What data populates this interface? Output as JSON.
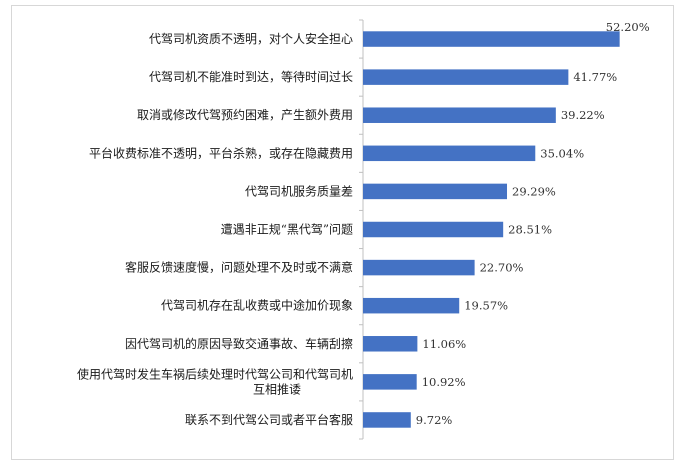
{
  "chart_data": {
    "type": "bar",
    "orientation": "horizontal",
    "categories": [
      "代驾司机资质不透明，对个人安全担心",
      "代驾司机不能准时到达，等待时间过长",
      "取消或修改代驾预约困难，产生额外费用",
      "平台收费标准不透明，平台杀熟，或存在隐藏费用",
      "代驾司机服务质量差",
      "遭遇非正规“黑代驾”问题",
      "客服反馈速度慢，问题处理不及时或不满意",
      "代驾司机存在乱收费或中途加价现象",
      "因代驾司机的原因导致交通事故、车辆刮擦",
      "使用代驾时发生车祸后续处理时代驾公司和代驾司机互相推诿",
      "联系不到代驾公司或者平台客服"
    ],
    "category_lines": [
      [
        "代驾司机资质不透明，对个人安全担心"
      ],
      [
        "代驾司机不能准时到达，等待时间过长"
      ],
      [
        "取消或修改代驾预约困难，产生额外费用"
      ],
      [
        "平台收费标准不透明，平台杀熟，或存在隐藏费用"
      ],
      [
        "代驾司机服务质量差"
      ],
      [
        "遭遇非正规“黑代驾”问题"
      ],
      [
        "客服反馈速度慢，问题处理不及时或不满意"
      ],
      [
        "代驾司机存在乱收费或中途加价现象"
      ],
      [
        "因代驾司机的原因导致交通事故、车辆刮擦"
      ],
      [
        "使用代驾时发生车祸后续处理时代驾公司和代驾司机",
        "互相推诿"
      ],
      [
        "联系不到代驾公司或者平台客服"
      ]
    ],
    "values": [
      52.2,
      41.77,
      39.22,
      35.04,
      29.29,
      28.51,
      22.7,
      19.57,
      11.06,
      10.92,
      9.72
    ],
    "value_labels": [
      "52.20%",
      "41.77%",
      "39.22%",
      "35.04%",
      "29.29%",
      "28.51%",
      "22.70%",
      "19.57%",
      "11.06%",
      "10.92%",
      "9.72%"
    ],
    "xlim": [
      0,
      60
    ],
    "grid": false,
    "legend": "none",
    "bar_color": "#4472c4",
    "axis_color": "#c0c0c0"
  }
}
